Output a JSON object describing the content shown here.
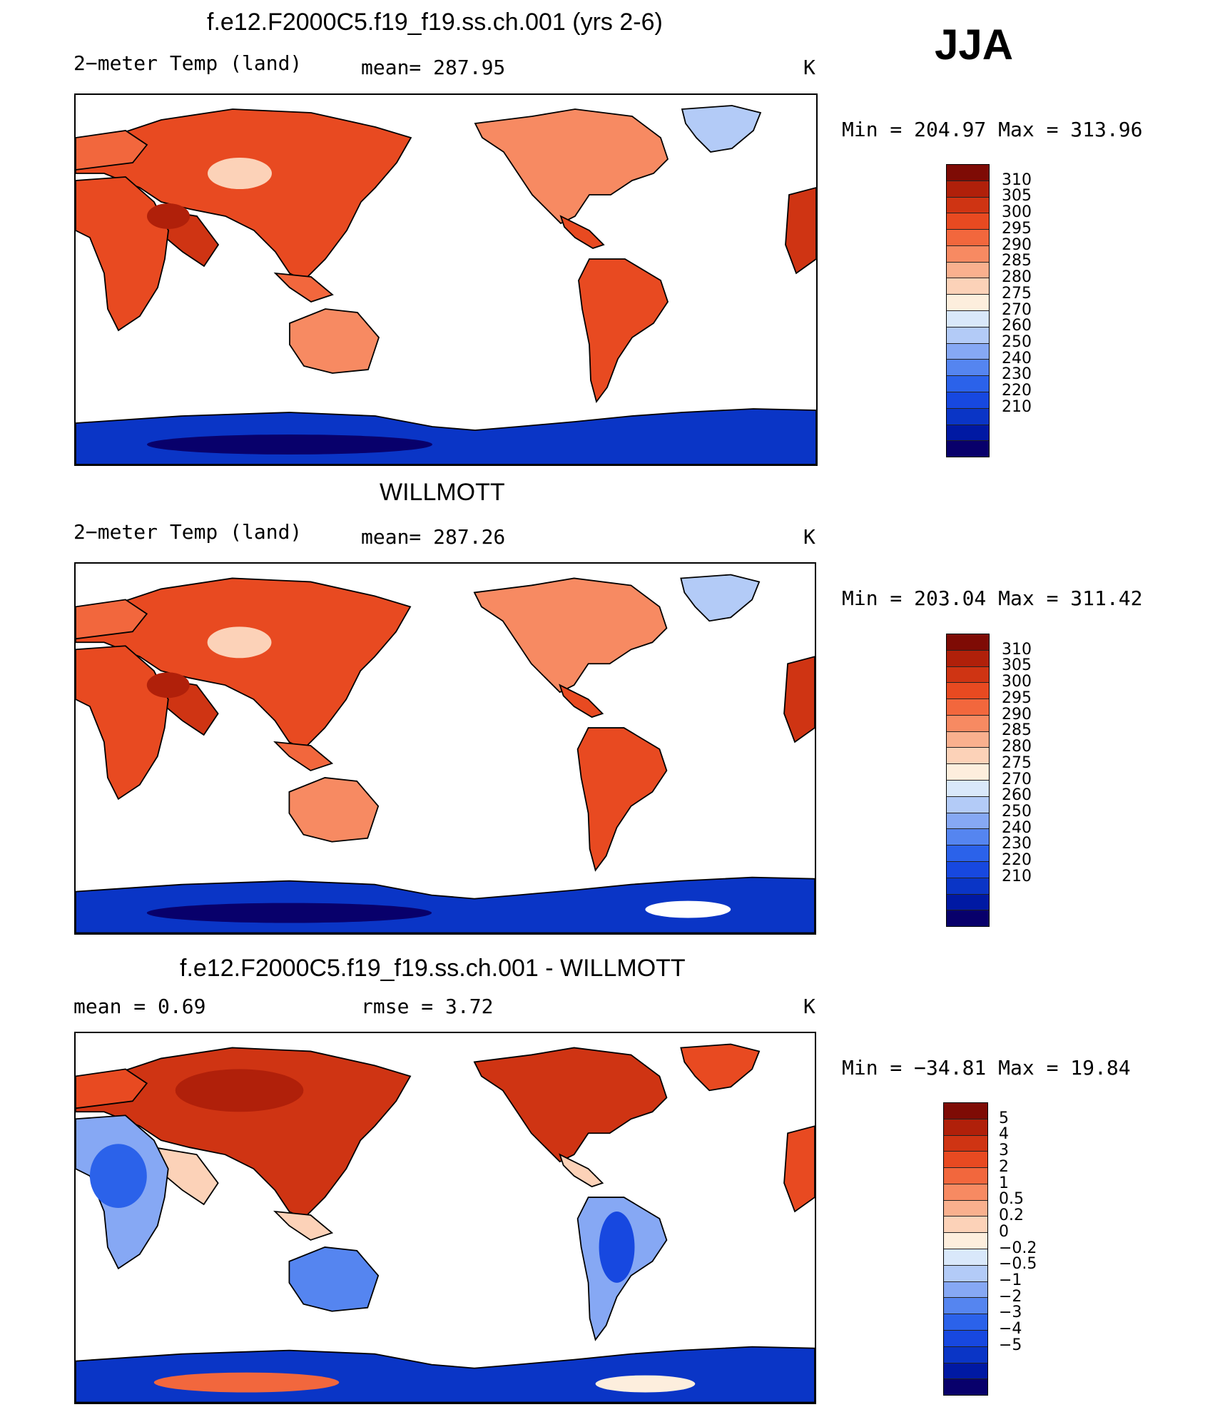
{
  "season": "JJA",
  "colors": {
    "abs_scale": [
      "#08006b",
      "#0019a3",
      "#0a35c6",
      "#1748e0",
      "#2b62ea",
      "#5585f0",
      "#86a8f4",
      "#b3cbf7",
      "#d9e8fa",
      "#fdeedd",
      "#fcd2b8",
      "#f9b08e",
      "#f78a62",
      "#f2673d",
      "#e84a21",
      "#cf3413",
      "#b0200a",
      "#7e0b05"
    ],
    "diff_scale": [
      "#08006b",
      "#0019a3",
      "#0a35c6",
      "#1748e0",
      "#2b62ea",
      "#5585f0",
      "#86a8f4",
      "#b3cbf7",
      "#d9e8fa",
      "#fdeedd",
      "#fcd2b8",
      "#f9b08e",
      "#f78a62",
      "#f2673d",
      "#e84a21",
      "#cf3413",
      "#b0200a",
      "#7e0b05"
    ]
  },
  "panels": [
    {
      "title": "f.e12.F2000C5.f19_f19.ss.ch.001 (yrs 2-6)",
      "left_label": "2−meter Temp (land)",
      "mid_label": "mean=  287.95",
      "unit": "K",
      "minmax": "Min  =  204.97  Max  =  313.96",
      "ticks": [
        "310",
        "305",
        "300",
        "295",
        "290",
        "285",
        "280",
        "275",
        "270",
        "260",
        "250",
        "240",
        "230",
        "220",
        "210"
      ],
      "scale": "abs",
      "map_icon": "world-temperature-map-model"
    },
    {
      "title": "WILLMOTT",
      "left_label": "2−meter Temp (land)",
      "mid_label": "mean=  287.26",
      "unit": "K",
      "minmax": "Min  =  203.04  Max  =  311.42",
      "ticks": [
        "310",
        "305",
        "300",
        "295",
        "290",
        "285",
        "280",
        "275",
        "270",
        "260",
        "250",
        "240",
        "230",
        "220",
        "210"
      ],
      "scale": "abs",
      "map_icon": "world-temperature-map-observed"
    },
    {
      "title": "f.e12.F2000C5.f19_f19.ss.ch.001 - WILLMOTT",
      "left_label": "mean  =     0.69",
      "mid_label": "rmse  =     3.72",
      "unit": "K",
      "minmax": "Min  =  −34.81  Max  =    19.84",
      "ticks": [
        "5",
        "4",
        "3",
        "2",
        "1",
        "0.5",
        "0.2",
        "0",
        "−0.2",
        "−0.5",
        "−1",
        "−2",
        "−3",
        "−4",
        "−5"
      ],
      "scale": "diff",
      "map_icon": "world-temperature-difference-map"
    }
  ]
}
